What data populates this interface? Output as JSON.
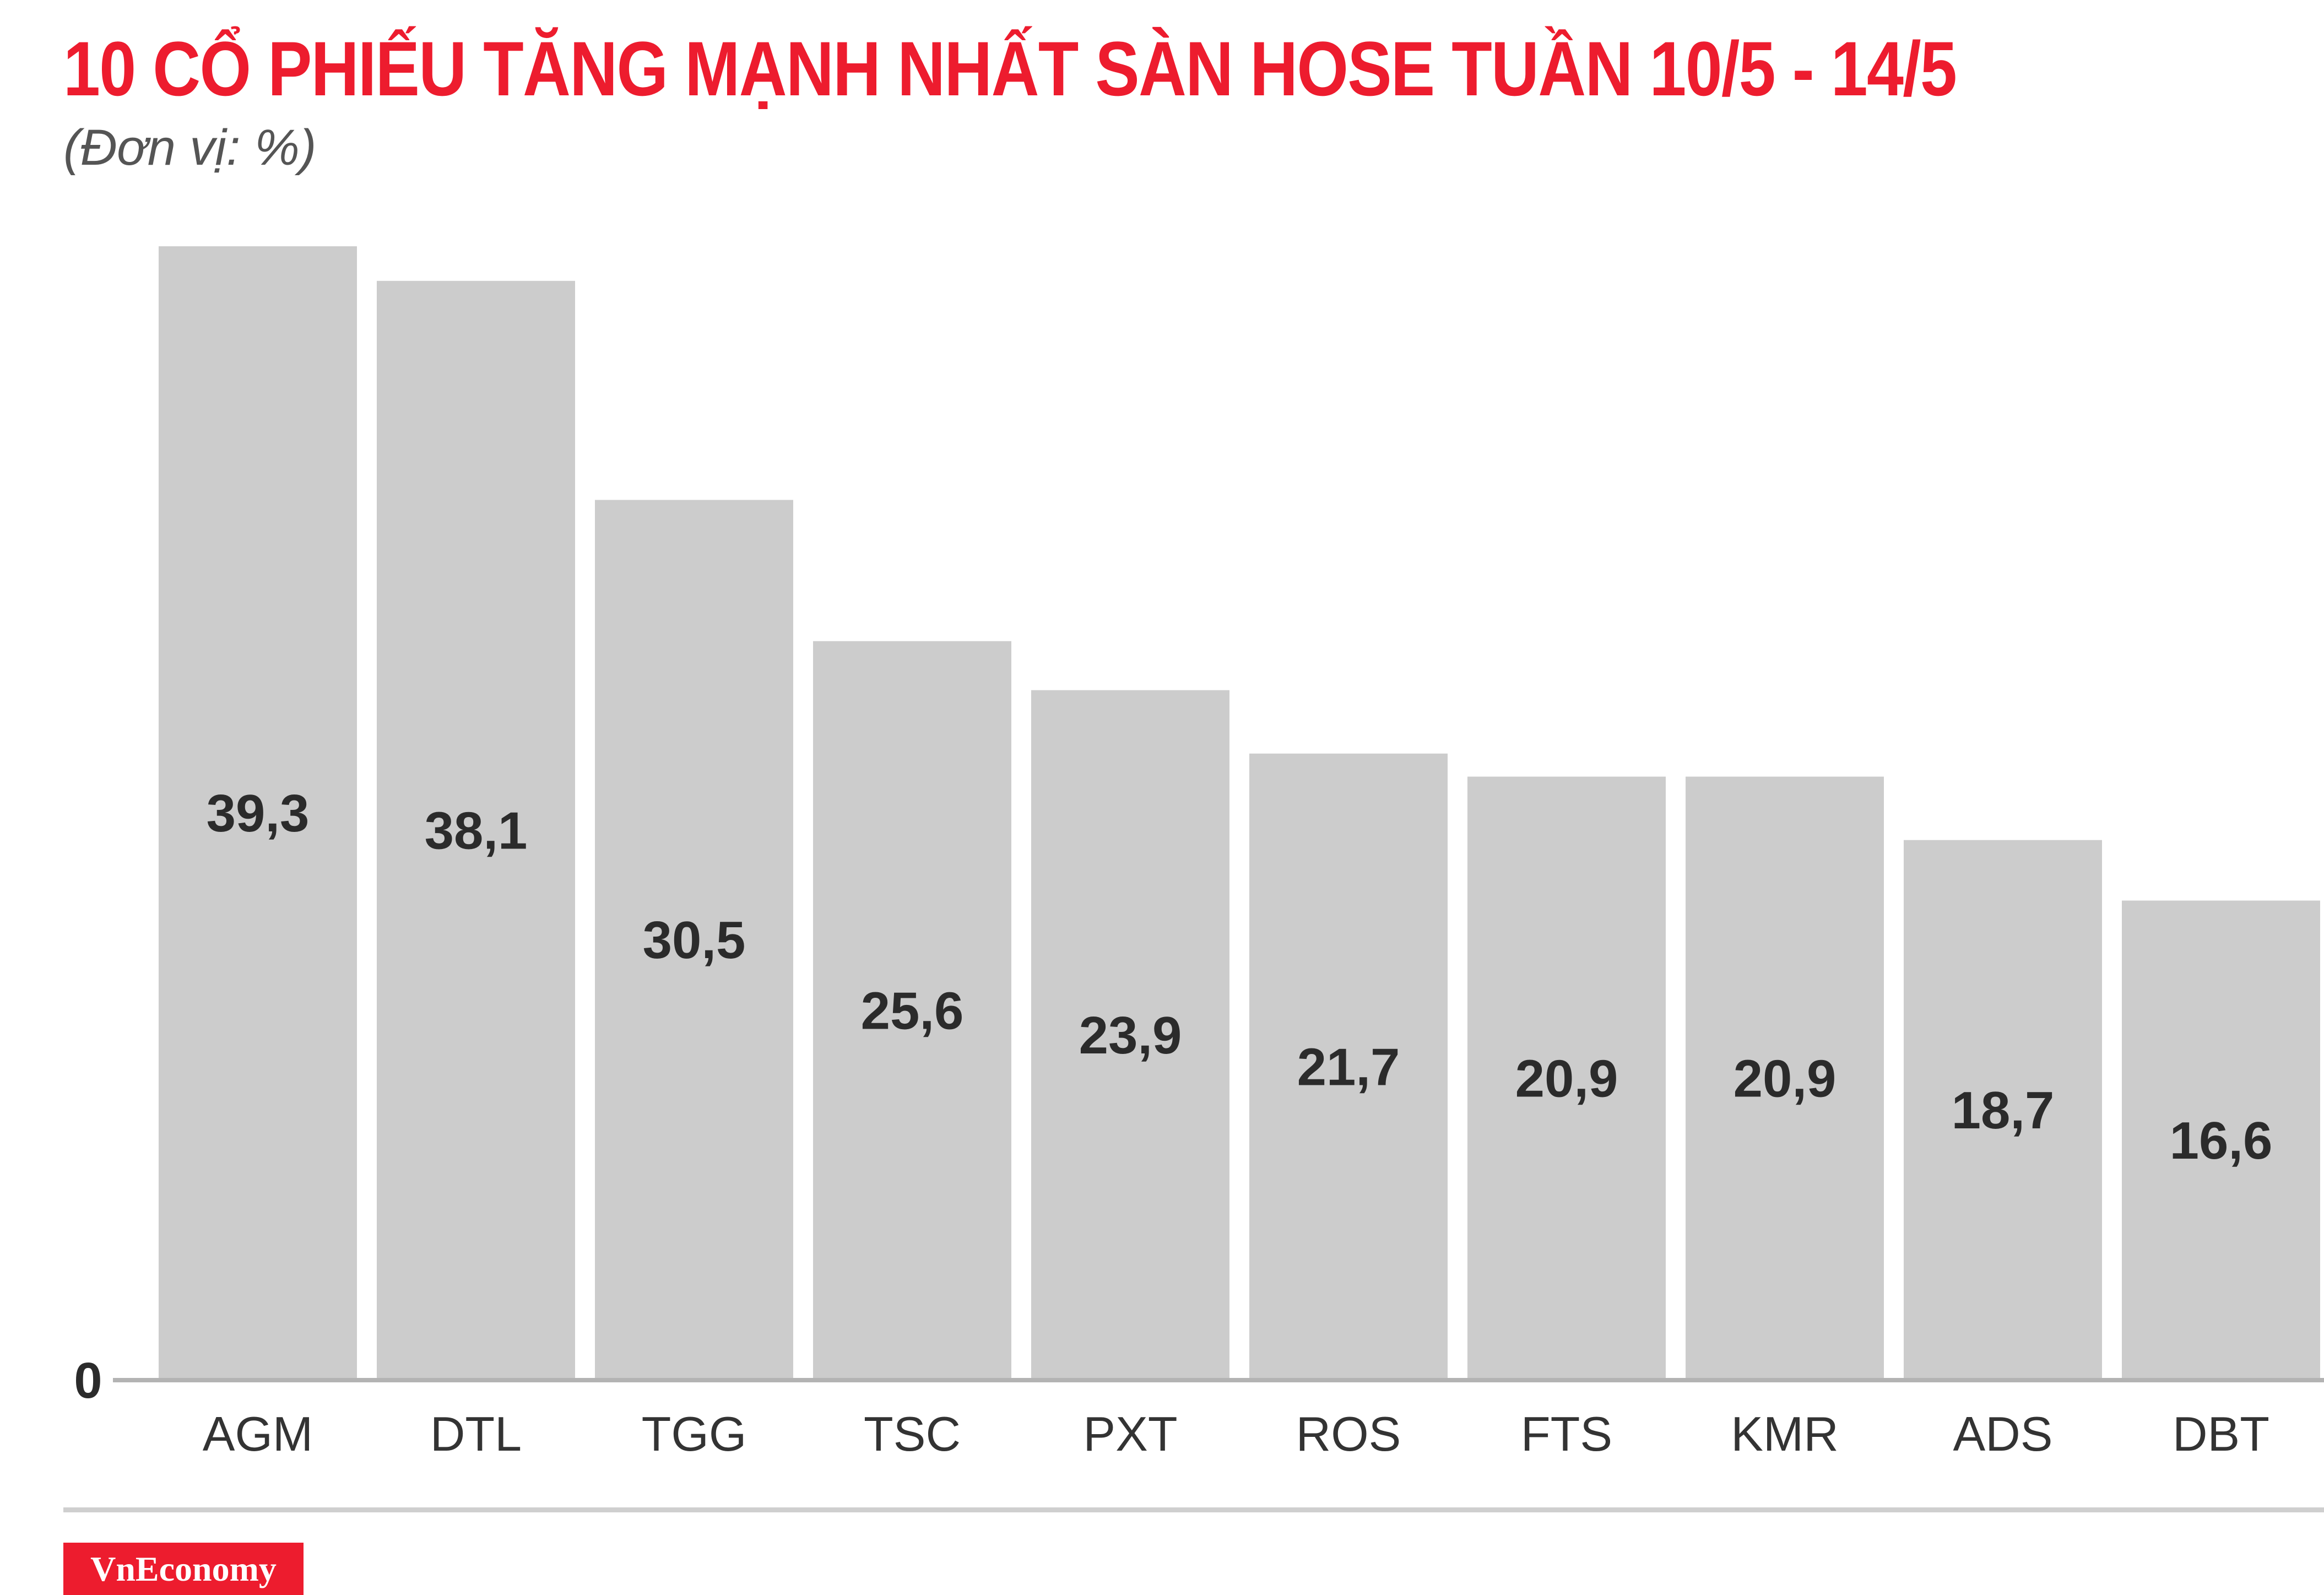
{
  "colors": {
    "title": "#ed1c2e",
    "subtitle": "#555555",
    "bar": "#cccccc",
    "bar_label": "#2b2b2b",
    "tick_label": "#333333",
    "axis": "#b3b3b3",
    "brand_bg": "#ed1c2e",
    "brand_text": "#ffffff"
  },
  "brand": {
    "name": "VnEconomy"
  },
  "chart_data": {
    "type": "bar",
    "title": "10 CỔ PHIẾU TĂNG MẠNH NHẤT SÀN HOSE TUẦN 10/5 - 14/5",
    "subtitle": "(Đơn vị: %)",
    "categories": [
      "AGM",
      "DTL",
      "TGG",
      "TSC",
      "PXT",
      "ROS",
      "FTS",
      "KMR",
      "ADS",
      "DBT"
    ],
    "values": [
      39.3,
      38.1,
      30.5,
      25.6,
      23.9,
      21.7,
      20.9,
      20.9,
      18.7,
      16.6
    ],
    "value_labels": [
      "39,3",
      "38,1",
      "30,5",
      "25,6",
      "23,9",
      "21,7",
      "20,9",
      "20,9",
      "18,7",
      "16,6"
    ],
    "axis_zero_label": "0",
    "xlabel": "",
    "ylabel": "",
    "ylim": [
      0,
      39.3
    ],
    "grid": false,
    "legend": "none"
  }
}
